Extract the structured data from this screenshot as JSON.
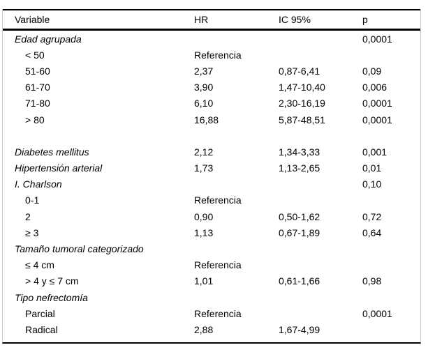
{
  "table": {
    "columns": [
      "Variable",
      "HR",
      "IC 95%",
      "p"
    ],
    "rows": [
      {
        "variable": "Edad agrupada",
        "italic": true,
        "indent": false,
        "hr": "",
        "ic": "",
        "p": "0,0001"
      },
      {
        "variable": "< 50",
        "italic": false,
        "indent": true,
        "hr": "Referencia",
        "ic": "",
        "p": ""
      },
      {
        "variable": "51-60",
        "italic": false,
        "indent": true,
        "hr": "2,37",
        "ic": "0,87-6,41",
        "p": "0,09"
      },
      {
        "variable": "61-70",
        "italic": false,
        "indent": true,
        "hr": "3,90",
        "ic": "1,47-10,40",
        "p": "0,006"
      },
      {
        "variable": "71-80",
        "italic": false,
        "indent": true,
        "hr": "6,10",
        "ic": "2,30-16,19",
        "p": "0,0001"
      },
      {
        "variable": "> 80",
        "italic": false,
        "indent": true,
        "hr": "16,88",
        "ic": "5,87-48,51",
        "p": "0,0001"
      },
      {
        "blank": true
      },
      {
        "variable": "Diabetes mellitus",
        "italic": true,
        "indent": false,
        "hr": "2,12",
        "ic": "1,34-3,33",
        "p": "0,001"
      },
      {
        "variable": "Hipertensión arterial",
        "italic": true,
        "indent": false,
        "hr": "1,73",
        "ic": "1,13-2,65",
        "p": "0,01"
      },
      {
        "variable": "I. Charlson",
        "italic": true,
        "indent": false,
        "hr": "",
        "ic": "",
        "p": "0,10"
      },
      {
        "variable": "0-1",
        "italic": false,
        "indent": true,
        "hr": "Referencia",
        "ic": "",
        "p": ""
      },
      {
        "variable": "2",
        "italic": false,
        "indent": true,
        "hr": "0,90",
        "ic": "0,50-1,62",
        "p": "0,72"
      },
      {
        "variable": "≥ 3",
        "italic": false,
        "indent": true,
        "hr": "1,13",
        "ic": "0,67-1,89",
        "p": "0,64"
      },
      {
        "variable": "Tamaño tumoral categorizado",
        "italic": true,
        "indent": false,
        "hr": "",
        "ic": "",
        "p": ""
      },
      {
        "variable": "≤ 4 cm",
        "italic": false,
        "indent": true,
        "hr": "Referencia",
        "ic": "",
        "p": ""
      },
      {
        "variable": "> 4 y ≤ 7 cm",
        "italic": false,
        "indent": true,
        "hr": "1,01",
        "ic": "0,61-1,66",
        "p": "0,98"
      },
      {
        "variable": "Tipo nefrectomía",
        "italic": true,
        "indent": false,
        "hr": "",
        "ic": "",
        "p": ""
      },
      {
        "variable": "Parcial",
        "italic": false,
        "indent": true,
        "hr": "Referencia",
        "ic": "",
        "p": "0,0001"
      },
      {
        "variable": "Radical",
        "italic": false,
        "indent": true,
        "hr": "2,88",
        "ic": "1,67-4,99",
        "p": ""
      }
    ]
  }
}
